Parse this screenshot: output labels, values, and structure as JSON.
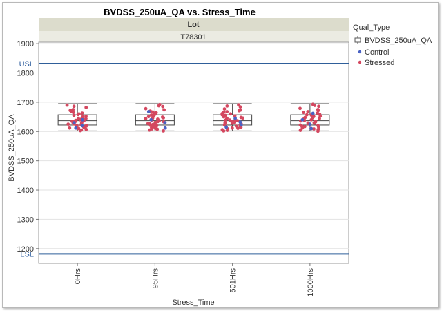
{
  "chart_data": {
    "type": "box",
    "title": "BVDSS_250uA_QA vs. Stress_Time",
    "panel_header": "Lot",
    "panel_value": "T78301",
    "xlabel": "Stress_Time",
    "ylabel": "BVDSS_250uA_QA",
    "categories": [
      "0Hrs",
      "95Hrs",
      "501Hrs",
      "1000Hrs"
    ],
    "ylim": [
      1150,
      1905
    ],
    "yticks": [
      1200,
      1300,
      1400,
      1500,
      1600,
      1700,
      1800,
      1900
    ],
    "spec_limits": [
      {
        "name": "USL",
        "value": 1832
      },
      {
        "name": "LSL",
        "value": 1182
      }
    ],
    "boxes": [
      {
        "category": "0Hrs",
        "min": 1602,
        "q1": 1622,
        "median": 1637,
        "q3": 1657,
        "max": 1695
      },
      {
        "category": "95Hrs",
        "min": 1602,
        "q1": 1622,
        "median": 1637,
        "q3": 1657,
        "max": 1695
      },
      {
        "category": "501Hrs",
        "min": 1602,
        "q1": 1622,
        "median": 1637,
        "q3": 1657,
        "max": 1695
      },
      {
        "category": "1000Hrs",
        "min": 1602,
        "q1": 1622,
        "median": 1637,
        "q3": 1657,
        "max": 1695
      }
    ],
    "legend": {
      "title": "Qual_Type",
      "box_label": "BVDSS_250uA_QA",
      "series": [
        {
          "name": "Control",
          "color": "#4a62c4"
        },
        {
          "name": "Stressed",
          "color": "#d4475f"
        }
      ]
    },
    "points": {
      "Stressed": [
        [
          0,
          1690
        ],
        [
          0,
          1682
        ],
        [
          0,
          1675
        ],
        [
          0,
          1668
        ],
        [
          0,
          1663
        ],
        [
          0,
          1658
        ],
        [
          0,
          1655
        ],
        [
          0,
          1650
        ],
        [
          0,
          1648
        ],
        [
          0,
          1645
        ],
        [
          0,
          1642
        ],
        [
          0,
          1640
        ],
        [
          0,
          1637
        ],
        [
          0,
          1635
        ],
        [
          0,
          1632
        ],
        [
          0,
          1630
        ],
        [
          0,
          1628
        ],
        [
          0,
          1625
        ],
        [
          0,
          1622
        ],
        [
          0,
          1620
        ],
        [
          0,
          1618
        ],
        [
          0,
          1615
        ],
        [
          0,
          1612
        ],
        [
          0,
          1610
        ],
        [
          0,
          1607
        ],
        [
          0,
          1605
        ],
        [
          0,
          1603
        ],
        [
          0,
          1660
        ],
        [
          0,
          1652
        ],
        [
          0,
          1644
        ],
        [
          0,
          1636
        ],
        [
          0,
          1626
        ],
        [
          0,
          1616
        ],
        [
          0,
          1686
        ],
        [
          0,
          1672
        ],
        [
          0,
          1665
        ],
        [
          0,
          1638
        ],
        [
          0,
          1629
        ],
        [
          0,
          1621
        ],
        [
          0,
          1611
        ],
        [
          1,
          1692
        ],
        [
          1,
          1685
        ],
        [
          1,
          1678
        ],
        [
          1,
          1670
        ],
        [
          1,
          1664
        ],
        [
          1,
          1659
        ],
        [
          1,
          1654
        ],
        [
          1,
          1651
        ],
        [
          1,
          1647
        ],
        [
          1,
          1644
        ],
        [
          1,
          1641
        ],
        [
          1,
          1639
        ],
        [
          1,
          1636
        ],
        [
          1,
          1633
        ],
        [
          1,
          1631
        ],
        [
          1,
          1627
        ],
        [
          1,
          1624
        ],
        [
          1,
          1621
        ],
        [
          1,
          1619
        ],
        [
          1,
          1616
        ],
        [
          1,
          1613
        ],
        [
          1,
          1610
        ],
        [
          1,
          1608
        ],
        [
          1,
          1605
        ],
        [
          1,
          1602
        ],
        [
          1,
          1662
        ],
        [
          1,
          1649
        ],
        [
          1,
          1642
        ],
        [
          1,
          1634
        ],
        [
          1,
          1625
        ],
        [
          1,
          1617
        ],
        [
          1,
          1688
        ],
        [
          1,
          1674
        ],
        [
          1,
          1667
        ],
        [
          1,
          1637
        ],
        [
          1,
          1628
        ],
        [
          1,
          1620
        ],
        [
          1,
          1609
        ],
        [
          1,
          1656
        ],
        [
          1,
          1646
        ],
        [
          2,
          1691
        ],
        [
          2,
          1684
        ],
        [
          2,
          1677
        ],
        [
          2,
          1671
        ],
        [
          2,
          1666
        ],
        [
          2,
          1660
        ],
        [
          2,
          1655
        ],
        [
          2,
          1650
        ],
        [
          2,
          1646
        ],
        [
          2,
          1643
        ],
        [
          2,
          1640
        ],
        [
          2,
          1638
        ],
        [
          2,
          1635
        ],
        [
          2,
          1632
        ],
        [
          2,
          1629
        ],
        [
          2,
          1626
        ],
        [
          2,
          1623
        ],
        [
          2,
          1620
        ],
        [
          2,
          1617
        ],
        [
          2,
          1614
        ],
        [
          2,
          1611
        ],
        [
          2,
          1609
        ],
        [
          2,
          1606
        ],
        [
          2,
          1604
        ],
        [
          2,
          1602
        ],
        [
          2,
          1661
        ],
        [
          2,
          1653
        ],
        [
          2,
          1645
        ],
        [
          2,
          1637
        ],
        [
          2,
          1628
        ],
        [
          2,
          1618
        ],
        [
          2,
          1687
        ],
        [
          2,
          1673
        ],
        [
          2,
          1668
        ],
        [
          2,
          1639
        ],
        [
          2,
          1630
        ],
        [
          2,
          1622
        ],
        [
          2,
          1612
        ],
        [
          2,
          1657
        ],
        [
          2,
          1648
        ],
        [
          3,
          1693
        ],
        [
          3,
          1686
        ],
        [
          3,
          1679
        ],
        [
          3,
          1672
        ],
        [
          3,
          1665
        ],
        [
          3,
          1659
        ],
        [
          3,
          1656
        ],
        [
          3,
          1651
        ],
        [
          3,
          1648
        ],
        [
          3,
          1645
        ],
        [
          3,
          1642
        ],
        [
          3,
          1640
        ],
        [
          3,
          1636
        ],
        [
          3,
          1633
        ],
        [
          3,
          1630
        ],
        [
          3,
          1628
        ],
        [
          3,
          1625
        ],
        [
          3,
          1622
        ],
        [
          3,
          1618
        ],
        [
          3,
          1615
        ],
        [
          3,
          1612
        ],
        [
          3,
          1609
        ],
        [
          3,
          1607
        ],
        [
          3,
          1604
        ],
        [
          3,
          1601
        ],
        [
          3,
          1663
        ],
        [
          3,
          1652
        ],
        [
          3,
          1644
        ],
        [
          3,
          1635
        ],
        [
          3,
          1627
        ],
        [
          3,
          1617
        ],
        [
          3,
          1689
        ],
        [
          3,
          1675
        ],
        [
          3,
          1668
        ],
        [
          3,
          1638
        ],
        [
          3,
          1629
        ],
        [
          3,
          1620
        ],
        [
          3,
          1610
        ],
        [
          3,
          1657
        ],
        [
          3,
          1647
        ]
      ],
      "Control": [
        [
          0,
          1640
        ],
        [
          0,
          1630
        ],
        [
          0,
          1620
        ],
        [
          0,
          1612
        ],
        [
          1,
          1668
        ],
        [
          1,
          1640
        ],
        [
          1,
          1630
        ],
        [
          1,
          1612
        ],
        [
          2,
          1645
        ],
        [
          2,
          1632
        ],
        [
          2,
          1622
        ],
        [
          2,
          1615
        ],
        [
          3,
          1662
        ],
        [
          3,
          1640
        ],
        [
          3,
          1625
        ],
        [
          3,
          1610
        ]
      ]
    }
  }
}
